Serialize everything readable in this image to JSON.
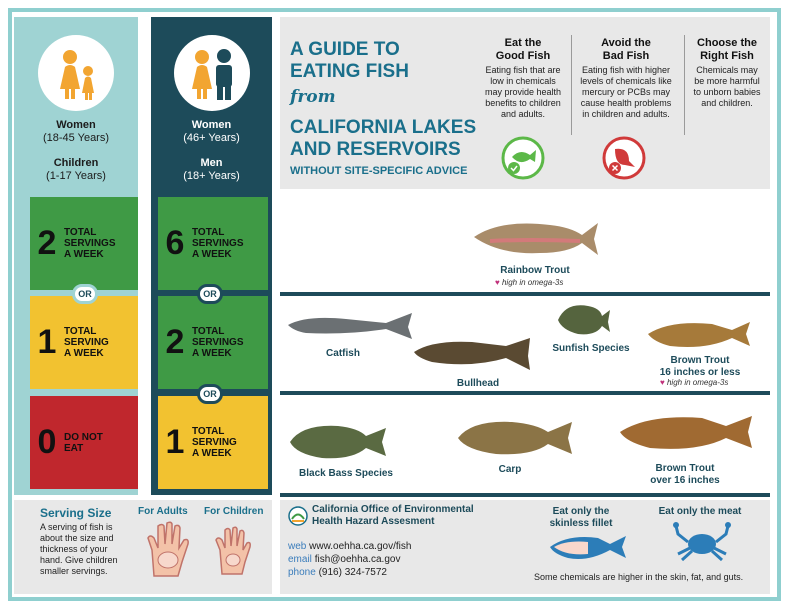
{
  "colors": {
    "accent": "#1a6f8b",
    "green": "#3f9a45",
    "yellow": "#f2c230",
    "red": "#c0272d",
    "navy": "#1d4b5a",
    "teal": "#9fd3d3"
  },
  "groupA": {
    "line1": "Women",
    "line2": "(18-45 Years)",
    "line3": "Children",
    "line4": "(1-17 Years)",
    "boxes": [
      {
        "num": "2",
        "text": [
          "TOTAL",
          "SERVINGS",
          "A WEEK"
        ]
      },
      {
        "num": "1",
        "text": [
          "TOTAL",
          "SERVING",
          "A WEEK"
        ]
      },
      {
        "num": "0",
        "text": [
          "DO NOT",
          "EAT"
        ]
      }
    ]
  },
  "groupB": {
    "line1": "Women",
    "line2": "(46+ Years)",
    "line3": "Men",
    "line4": "(18+ Years)",
    "boxes": [
      {
        "num": "6",
        "text": [
          "TOTAL",
          "SERVINGS",
          "A WEEK"
        ]
      },
      {
        "num": "2",
        "text": [
          "TOTAL",
          "SERVINGS",
          "A WEEK"
        ]
      },
      {
        "num": "1",
        "text": [
          "TOTAL",
          "SERVING",
          "A WEEK"
        ]
      }
    ]
  },
  "or_label": "OR",
  "header": {
    "title1": "A GUIDE TO",
    "title2": "EATING FISH",
    "from": "from",
    "title3": "CALIFORNIA LAKES",
    "title4": "AND RESERVOIRS",
    "subtitle": "WITHOUT SITE-SPECIFIC ADVICE",
    "cols": [
      {
        "h1": "Eat the",
        "h2": "Good Fish",
        "t": [
          "Eating fish that are",
          "low in chemicals",
          "may provide health",
          "benefits to children",
          "and adults."
        ]
      },
      {
        "h1": "Avoid the",
        "h2": "Bad Fish",
        "t": [
          "Eating fish with higher",
          "levels of chemicals like",
          "mercury or PCBs may",
          "cause health problems",
          "in children and adults."
        ]
      },
      {
        "h1": "Choose the",
        "h2": "Right Fish",
        "t": [
          "Chemicals may",
          "be more harmful",
          "to unborn babies",
          "and children."
        ]
      }
    ]
  },
  "fish": {
    "rainbow": "Rainbow Trout",
    "omega": "high in omega-3s",
    "catfish": "Catfish",
    "bullhead": "Bullhead",
    "sunfish": "Sunfish Species",
    "brown_small1": "Brown Trout",
    "brown_small2": "16 inches or less",
    "bass": "Black Bass Species",
    "carp": "Carp",
    "brown_big1": "Brown Trout",
    "brown_big2": "over 16 inches"
  },
  "serving": {
    "title": "Serving Size",
    "adults": "For Adults",
    "children": "For Children",
    "text": [
      "A serving of fish is",
      "about the size and",
      "thickness of your",
      "hand. Give children",
      "smaller servings."
    ]
  },
  "oehha": {
    "name1": "California Office of Environmental",
    "name2": "Health Hazard Assesment",
    "web_k": "web",
    "web": "www.oehha.ca.gov/fish",
    "email_k": "email",
    "email": "fish@oehha.ca.gov",
    "phone_k": "phone",
    "phone": "(916) 324-7572"
  },
  "tips": {
    "fillet1": "Eat only the",
    "fillet2": "skinless fillet",
    "meat": "Eat only the meat",
    "note": "Some chemicals are higher in the skin, fat, and guts."
  }
}
